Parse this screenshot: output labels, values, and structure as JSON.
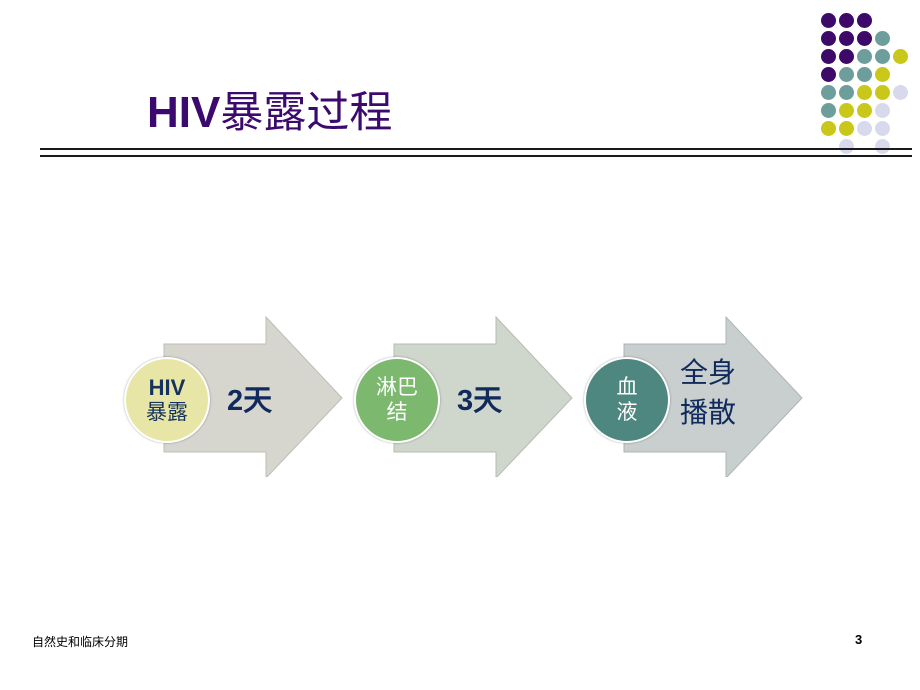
{
  "slide": {
    "title_latin": "HIV",
    "title_cn": "暴露过程",
    "colors": {
      "title": "#3c0a6e",
      "purple": "#3d0a6a",
      "teal": "#6e9e9c",
      "yellow": "#c9c81a",
      "lavender": "#d9d9ee"
    }
  },
  "steps": [
    {
      "circle_lines": [
        "HIV",
        "暴露"
      ],
      "circle_color": "#e8e6a6",
      "circle_text_color": "#16335e",
      "arrow_color": "#d6d6cf",
      "label": "2天"
    },
    {
      "circle_lines": [
        "淋巴",
        "结"
      ],
      "circle_color": "#7cb86e",
      "circle_text_color": "#ffffff",
      "arrow_color": "#cfd7cc",
      "label": "3天"
    },
    {
      "circle_lines": [
        "血",
        "液"
      ],
      "circle_color": "#4e8780",
      "circle_text_color": "#ffffff",
      "arrow_color": "#c8cfce",
      "label_lines": [
        "全身",
        "播散"
      ]
    }
  ],
  "footer": {
    "left": "自然史和临床分期",
    "page_number": "3"
  }
}
